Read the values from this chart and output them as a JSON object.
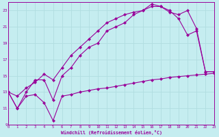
{
  "xlabel": "Windchill (Refroidissement éolien,°C)",
  "xlim": [
    0,
    23
  ],
  "ylim": [
    9,
    24
  ],
  "xticks": [
    0,
    1,
    2,
    3,
    4,
    5,
    6,
    7,
    8,
    9,
    10,
    11,
    12,
    13,
    14,
    15,
    16,
    17,
    18,
    19,
    20,
    21,
    22,
    23
  ],
  "yticks": [
    9,
    11,
    13,
    15,
    17,
    19,
    21,
    23
  ],
  "bg_color": "#c5edf0",
  "line_color": "#990099",
  "grid_color": "#b0dde0",
  "line1_x": [
    0,
    1,
    2,
    3,
    4,
    5,
    6,
    7,
    8,
    9,
    10,
    11,
    12,
    13,
    14,
    15,
    16,
    17,
    18,
    19,
    20,
    21,
    22,
    23
  ],
  "line1_y": [
    13,
    11,
    12.5,
    12.7,
    11.7,
    9.5,
    12.5,
    12.7,
    13.0,
    13.2,
    13.4,
    13.5,
    13.7,
    13.9,
    14.1,
    14.3,
    14.5,
    14.6,
    14.8,
    14.9,
    15.0,
    15.1,
    15.2,
    15.3
  ],
  "line2_x": [
    0,
    1,
    2,
    3,
    4,
    5,
    6,
    7,
    8,
    9,
    10,
    11,
    12,
    13,
    14,
    15,
    16,
    17,
    18,
    19,
    20,
    21,
    22,
    23
  ],
  "line2_y": [
    13,
    11,
    13.0,
    14.5,
    14.5,
    12.0,
    15.0,
    16.0,
    17.5,
    18.5,
    19.0,
    20.5,
    21.0,
    21.5,
    22.5,
    23.0,
    23.5,
    23.5,
    23.0,
    22.0,
    20.0,
    20.5,
    15.5,
    15.5
  ],
  "line3_x": [
    0,
    1,
    2,
    3,
    4,
    5,
    6,
    7,
    8,
    9,
    10,
    11,
    12,
    13,
    14,
    15,
    16,
    17,
    18,
    19,
    20,
    21,
    22,
    23
  ],
  "line3_y": [
    13,
    12.5,
    13.5,
    14.2,
    15.2,
    14.5,
    16.0,
    17.5,
    18.5,
    19.5,
    20.5,
    21.5,
    22.0,
    22.5,
    22.8,
    23.0,
    23.8,
    23.5,
    22.8,
    22.5,
    23.0,
    20.8,
    15.5,
    15.5
  ]
}
